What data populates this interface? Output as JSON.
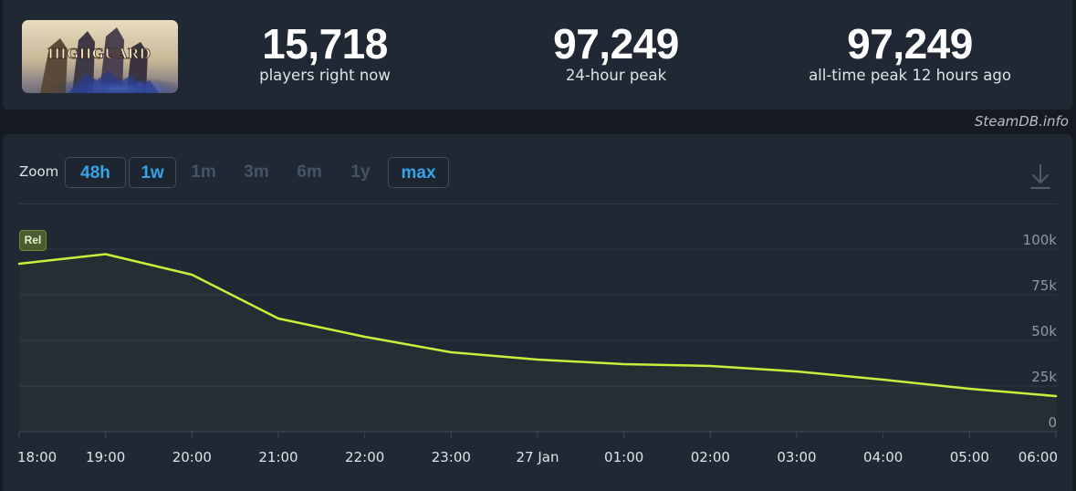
{
  "game": {
    "logo_text": "HIGHGUARD"
  },
  "stats": [
    {
      "value": "15,718",
      "label": "players right now"
    },
    {
      "value": "97,249",
      "label": "24-hour peak"
    },
    {
      "value": "97,249",
      "label": "all-time peak 12 hours ago"
    }
  ],
  "watermark": "SteamDB.info",
  "zoom": {
    "label": "Zoom",
    "options": [
      {
        "label": "48h",
        "state": "active"
      },
      {
        "label": "1w",
        "state": "active"
      },
      {
        "label": "1m",
        "state": "disabled"
      },
      {
        "label": "3m",
        "state": "disabled"
      },
      {
        "label": "6m",
        "state": "disabled"
      },
      {
        "label": "1y",
        "state": "disabled"
      },
      {
        "label": "max",
        "state": "active"
      }
    ]
  },
  "download_icon": "download-icon",
  "marker": {
    "label": "Rel"
  },
  "colors": {
    "panel": "#1f2833",
    "background": "#161b22",
    "line": "#c6f03c",
    "active_zoom": "#37a2e6",
    "disabled_zoom": "#445366"
  },
  "chart_data": {
    "type": "area",
    "x": [
      "18:00",
      "19:00",
      "20:00",
      "21:00",
      "22:00",
      "23:00",
      "27 Jan",
      "01:00",
      "02:00",
      "03:00",
      "04:00",
      "05:00",
      "06:00"
    ],
    "y_ticks": [
      "100k",
      "75k",
      "50k",
      "25k",
      "0"
    ],
    "ylim": [
      0,
      100000
    ],
    "series": [
      {
        "values": [
          92000,
          97249,
          86000,
          62000,
          52000,
          43500,
          39500,
          37000,
          36000,
          33000,
          28500,
          23500,
          19500
        ]
      }
    ],
    "grid": true
  }
}
